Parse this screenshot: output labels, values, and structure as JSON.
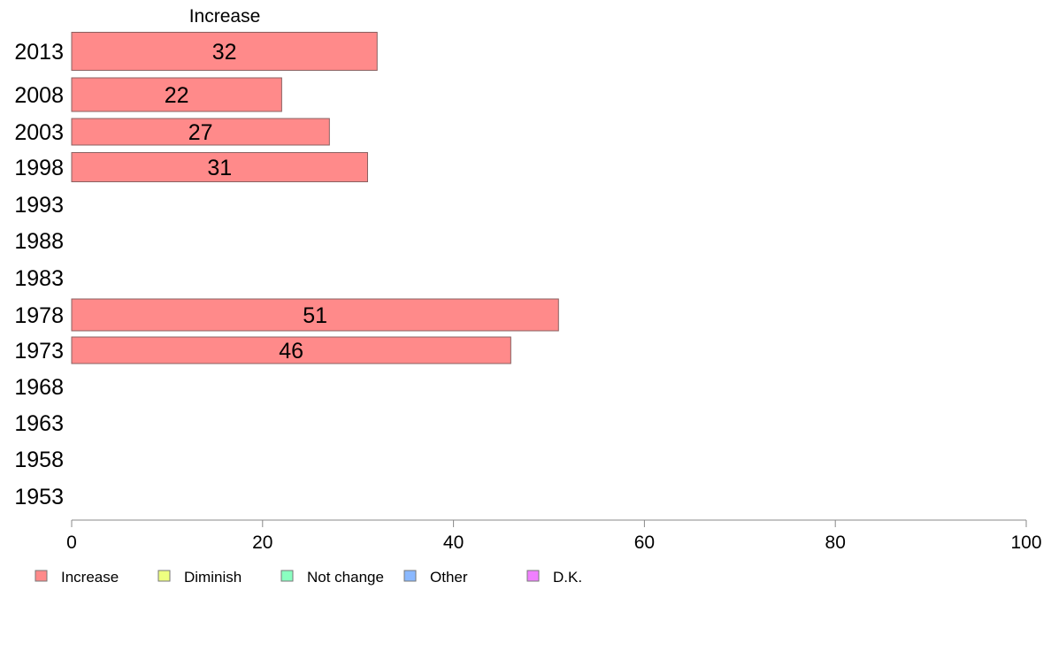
{
  "chart_data": {
    "type": "bar",
    "orientation": "horizontal",
    "title": "Increase",
    "categories": [
      "2013",
      "2008",
      "2003",
      "1998",
      "1993",
      "1988",
      "1983",
      "1978",
      "1973",
      "1968",
      "1963",
      "1958",
      "1953"
    ],
    "series": [
      {
        "name": "Increase",
        "color": "#ff8a8a",
        "values": [
          32,
          22,
          27,
          31,
          null,
          null,
          null,
          51,
          46,
          null,
          null,
          null,
          null
        ]
      }
    ],
    "data_labels": [
      "32",
      "22",
      "27",
      "31",
      "",
      "",
      "",
      "51",
      "46",
      "",
      "",
      "",
      ""
    ],
    "xlim": [
      0,
      100
    ],
    "xticks": [
      0,
      20,
      40,
      60,
      80,
      100
    ],
    "grid": false,
    "legend": {
      "placement": "bottom-left",
      "entries": [
        {
          "label": "Increase",
          "color": "#ff8a8a"
        },
        {
          "label": "Diminish",
          "color": "#eeff80"
        },
        {
          "label": "Not change",
          "color": "#8affc0"
        },
        {
          "label": "Other",
          "color": "#8ab8ff"
        },
        {
          "label": "D.K.",
          "color": "#f080ff"
        }
      ]
    }
  }
}
